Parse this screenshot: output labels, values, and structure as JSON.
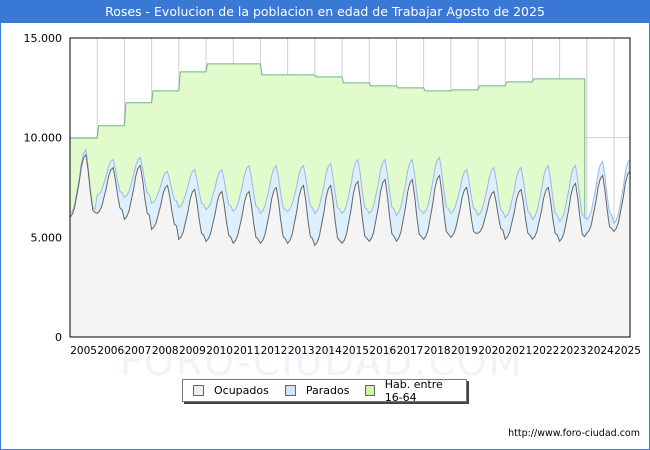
{
  "header": {
    "title": "Roses - Evolucion de la poblacion en edad de Trabajar Agosto de 2025"
  },
  "footer": {
    "url": "http://www.foro-ciudad.com"
  },
  "watermark": "FORO-CIUDAD.COM",
  "colors": {
    "title_bg": "#3a78d6",
    "hab_fill": "#e2fbcc",
    "hab_line": "#6fb38a",
    "parados_fill": "#ddeefc",
    "parados_line": "#9ab9e8",
    "ocupados_fill": "#f4f4f4",
    "ocupados_line": "#666666",
    "grid": "#d0d0d0"
  },
  "legend": [
    {
      "label": "Ocupados",
      "color": "#eeeeee"
    },
    {
      "label": "Parados",
      "color": "#cfe3fa"
    },
    {
      "label": "Hab. entre 16-64",
      "color": "#ccf5a8"
    }
  ],
  "chart_data": {
    "type": "area",
    "title": "Roses - Evolucion de la poblacion en edad de Trabajar Agosto de 2025",
    "xlabel": "",
    "ylabel": "",
    "ylim": [
      0,
      15000
    ],
    "yticks": [
      0,
      5000,
      10000,
      15000
    ],
    "ytick_labels": [
      "0",
      "5.000",
      "10.000",
      "15.000"
    ],
    "xticks": [
      "2005",
      "2006",
      "2007",
      "2008",
      "2009",
      "2010",
      "2011",
      "2012",
      "2013",
      "2014",
      "2015",
      "2016",
      "2017",
      "2018",
      "2019",
      "2020",
      "2021",
      "2022",
      "2023",
      "2024",
      "2025"
    ],
    "xlim": [
      2005,
      2025.6
    ],
    "grid": true,
    "legend_position": "bottom",
    "series": [
      {
        "name": "Hab. entre 16-64",
        "note": "annual value (January), step series; ends early 2024",
        "years": [
          2005,
          2006,
          2007,
          2008,
          2009,
          2010,
          2011,
          2012,
          2013,
          2014,
          2015,
          2016,
          2017,
          2018,
          2019,
          2020,
          2021,
          2022,
          2023
        ],
        "values": [
          9980,
          10600,
          11750,
          12350,
          13300,
          13700,
          13700,
          13150,
          13150,
          13050,
          12750,
          12600,
          12500,
          12350,
          12400,
          12600,
          12800,
          12950,
          12950
        ]
      },
      {
        "name": "Parados",
        "note": "stacked on Ocupados (top = Ocupados + Parados); monthly seasonal; per-year trough/peak of stacked total",
        "years": [
          2005,
          2006,
          2007,
          2008,
          2009,
          2010,
          2011,
          2012,
          2013,
          2014,
          2015,
          2016,
          2017,
          2018,
          2019,
          2020,
          2021,
          2022,
          2023,
          2024,
          2025
        ],
        "trough": [
          6000,
          7100,
          7000,
          6700,
          6500,
          6400,
          6300,
          6200,
          6300,
          6200,
          6200,
          6200,
          6100,
          6200,
          6200,
          6100,
          6000,
          5900,
          5800,
          5900,
          5700
        ],
        "peak": [
          9400,
          8900,
          9000,
          8300,
          8400,
          8400,
          8600,
          8600,
          8600,
          8700,
          8900,
          8900,
          8900,
          9000,
          8400,
          8500,
          8500,
          8600,
          8600,
          8800,
          8900
        ]
      },
      {
        "name": "Ocupados",
        "note": "monthly seasonal; per-year trough/peak",
        "years": [
          2005,
          2006,
          2007,
          2008,
          2009,
          2010,
          2011,
          2012,
          2013,
          2014,
          2015,
          2016,
          2017,
          2018,
          2019,
          2020,
          2021,
          2022,
          2023,
          2024,
          2025
        ],
        "trough": [
          6000,
          6200,
          5900,
          5400,
          4900,
          4800,
          4700,
          4700,
          4700,
          4600,
          4700,
          4800,
          4800,
          4900,
          5000,
          5200,
          4900,
          4900,
          4800,
          5200,
          5300
        ],
        "peak": [
          9150,
          8500,
          8600,
          7600,
          7400,
          7300,
          7300,
          7500,
          7600,
          7600,
          7800,
          7900,
          7900,
          8100,
          7500,
          7300,
          7400,
          7500,
          7700,
          8100,
          8300
        ]
      }
    ]
  }
}
